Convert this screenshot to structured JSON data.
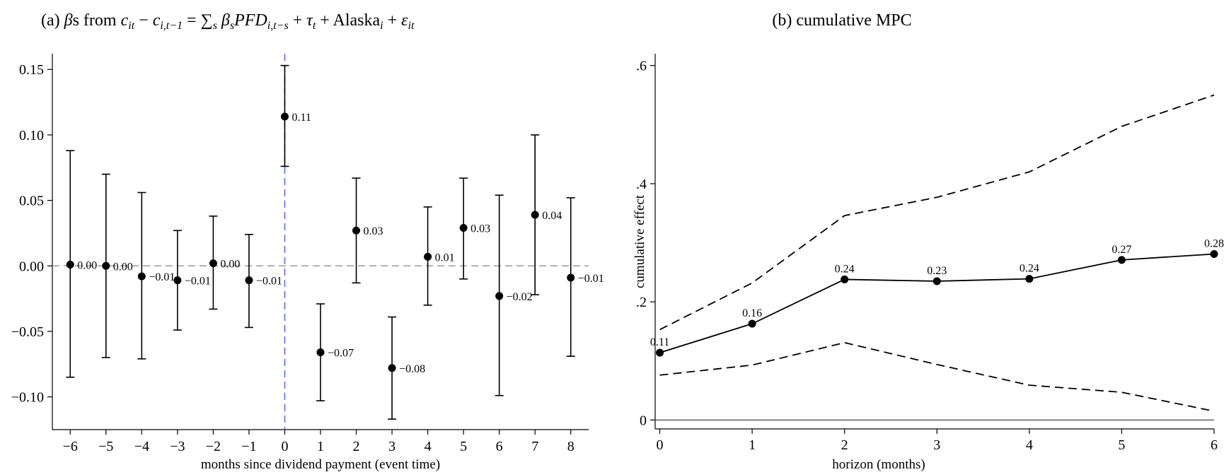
{
  "chart_data": [
    {
      "type": "scatter",
      "panel": "a",
      "title_parts": {
        "prefix": "(a) ",
        "beta": "β",
        "s_from": "s from ",
        "c1": "c",
        "c1_sub": "it",
        "minus": " − ",
        "c2": "c",
        "c2_sub": "i,t−1",
        "eq": " = ",
        "sum": "∑",
        "sum_sub": "s",
        "beta2": "β",
        "beta2_sub": "s",
        "pfd": "PFD",
        "pfd_sub": "i,t−s",
        "plus1": " + ",
        "tau": "τ",
        "tau_sub": "t",
        "plus2": " + Alaska",
        "alaska_sub": "i",
        "plus3": " + ",
        "eps": "ε",
        "eps_sub": "it"
      },
      "xlabel": "months since dividend payment (event time)",
      "ylabel": "",
      "x": [
        -6,
        -5,
        -4,
        -3,
        -2,
        -1,
        0,
        1,
        2,
        3,
        4,
        5,
        6,
        7,
        8
      ],
      "y": [
        0.001,
        0.0,
        -0.008,
        -0.011,
        0.002,
        -0.011,
        0.114,
        -0.066,
        0.027,
        -0.078,
        0.007,
        0.029,
        -0.023,
        0.039,
        -0.009
      ],
      "ci_low": [
        -0.085,
        -0.07,
        -0.071,
        -0.049,
        -0.033,
        -0.047,
        0.076,
        -0.103,
        -0.013,
        -0.117,
        -0.03,
        -0.01,
        -0.099,
        -0.022,
        -0.069
      ],
      "ci_high": [
        0.088,
        0.07,
        0.056,
        0.027,
        0.038,
        0.024,
        0.153,
        -0.029,
        0.067,
        -0.039,
        0.045,
        0.067,
        0.054,
        0.1,
        0.052
      ],
      "point_labels": [
        "0.00",
        "0.00",
        "−0.01",
        "−0.01",
        "0.00",
        "−0.01",
        "0.11",
        "−0.07",
        "0.03",
        "−0.08",
        "0.01",
        "0.03",
        "−0.02",
        "0.04",
        "−0.01"
      ],
      "xticks": [
        -6,
        -5,
        -4,
        -3,
        -2,
        -1,
        0,
        1,
        2,
        3,
        4,
        5,
        6,
        7,
        8
      ],
      "xtick_labels": [
        "−6",
        "−5",
        "−4",
        "−3",
        "−2",
        "−1",
        "0",
        "1",
        "2",
        "3",
        "4",
        "5",
        "6",
        "7",
        "8"
      ],
      "yticks": [
        0.15,
        0.1,
        0.05,
        0.0,
        -0.05,
        -0.1
      ],
      "ytick_labels": [
        "0.15",
        "0.10",
        "0.05",
        "0.00",
        "−0.05",
        "−0.10"
      ],
      "xlim": [
        -6.5,
        8.5
      ],
      "ylim": [
        -0.125,
        0.162
      ],
      "reference_lines": [
        {
          "axis": "y",
          "value": 0,
          "style": "dashed",
          "color": "#999999"
        },
        {
          "axis": "x",
          "value": 0,
          "style": "dashed",
          "color": "#5a6cf0"
        }
      ],
      "grid": false,
      "colors": {
        "points": "#000000",
        "zero_line": "#999999",
        "event_line": "#5a6cf0"
      }
    },
    {
      "type": "line",
      "panel": "b",
      "title": "(b) cumulative MPC",
      "xlabel": "horizon  (months)",
      "ylabel": "cumulative effect",
      "x": [
        0,
        1,
        2,
        3,
        4,
        5,
        6
      ],
      "series": [
        {
          "values": [
            0.114,
            0.163,
            0.238,
            0.235,
            0.239,
            0.271,
            0.281
          ],
          "style": "solid",
          "markers": true,
          "labels": [
            "0.11",
            "0.16",
            "0.24",
            "0.23",
            "0.24",
            "0.27",
            "0.28"
          ]
        },
        {
          "values": [
            0.153,
            0.232,
            0.346,
            0.377,
            0.42,
            0.497,
            0.55
          ],
          "style": "dashed",
          "markers": false
        },
        {
          "values": [
            0.076,
            0.093,
            0.131,
            0.094,
            0.059,
            0.047,
            0.015
          ],
          "style": "dashed",
          "markers": false
        }
      ],
      "xticks": [
        0,
        1,
        2,
        3,
        4,
        5,
        6
      ],
      "xtick_labels": [
        "0",
        "1",
        "2",
        "3",
        "4",
        "5",
        "6"
      ],
      "yticks": [
        0,
        0.2,
        0.4,
        0.6
      ],
      "ytick_labels": [
        "0",
        ".2",
        ".4",
        ".6"
      ],
      "xlim": [
        -0.05,
        6.0
      ],
      "ylim": [
        -0.015,
        0.62
      ],
      "reference_lines": [
        {
          "axis": "y",
          "value": 0,
          "style": "solid",
          "color": "#555555"
        }
      ],
      "grid": false
    }
  ]
}
